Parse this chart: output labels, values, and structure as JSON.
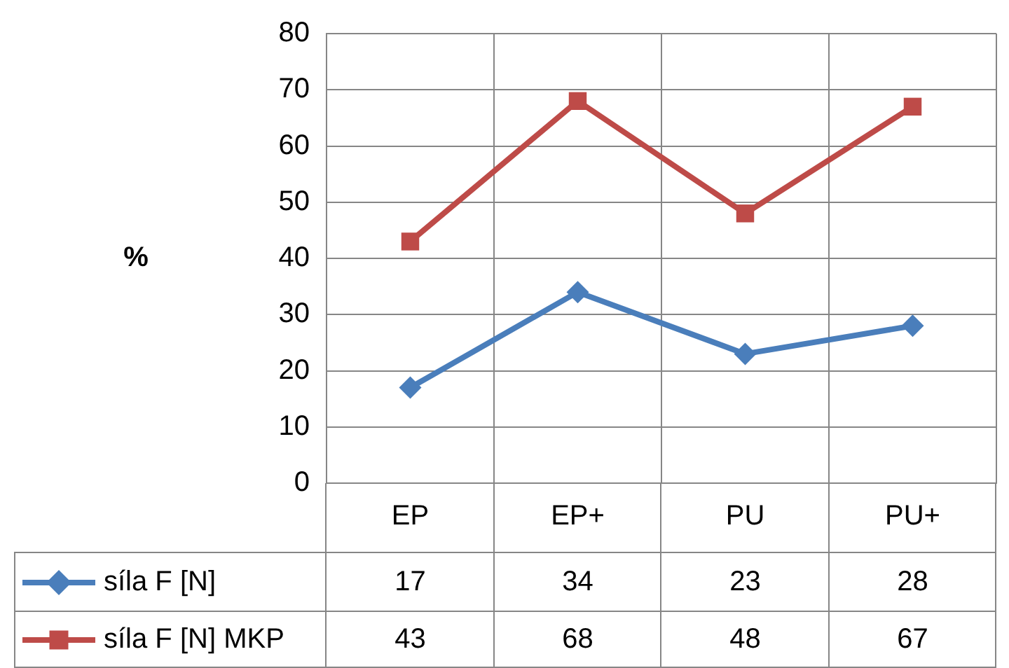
{
  "chart_data": {
    "type": "line",
    "ylabel": "%",
    "categories": [
      "EP",
      "EP+",
      "PU",
      "PU+"
    ],
    "series": [
      {
        "name": "síla F [N]",
        "color": "#4a7ebb",
        "marker": "diamond",
        "values": [
          17,
          34,
          23,
          28
        ]
      },
      {
        "name": "síla F [N] MKP",
        "color": "#be4b48",
        "marker": "square",
        "values": [
          43,
          68,
          48,
          67
        ]
      }
    ],
    "ylim": [
      0,
      80
    ],
    "yticks": [
      0,
      10,
      20,
      30,
      40,
      50,
      60,
      70,
      80
    ],
    "grid": true,
    "legend": "bottom",
    "data_labels": true,
    "line_style": "solid"
  }
}
